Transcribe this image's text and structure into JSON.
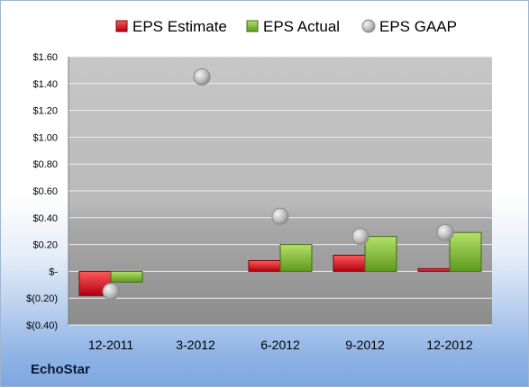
{
  "chart_data": {
    "type": "bar",
    "title": "",
    "xlabel": "",
    "ylabel": "",
    "categories": [
      "12-2011",
      "3-2012",
      "6-2012",
      "9-2012",
      "12-2012"
    ],
    "series": [
      {
        "name": "EPS Estimate",
        "kind": "bar",
        "color": "#e0202a",
        "values": [
          -0.18,
          null,
          0.08,
          0.12,
          0.02
        ]
      },
      {
        "name": "EPS Actual",
        "kind": "bar",
        "color": "#8ec63f",
        "values": [
          -0.08,
          null,
          0.2,
          0.26,
          0.29
        ]
      },
      {
        "name": "EPS GAAP",
        "kind": "marker",
        "color": "#b8b8b8",
        "values": [
          -0.15,
          1.45,
          0.41,
          0.26,
          0.29
        ]
      }
    ],
    "ylim": [
      -0.4,
      1.6
    ],
    "yticks": [
      1.6,
      1.4,
      1.2,
      1.0,
      0.8,
      0.6,
      0.4,
      0.2,
      0.0,
      -0.2,
      -0.4
    ],
    "ytick_labels": [
      "$1.60",
      "$1.40",
      "$1.20",
      "$1.00",
      "$0.80",
      "$0.60",
      "$0.40",
      "$0.20",
      "$-",
      "$(0.20)",
      "$(0.40)"
    ],
    "grid": true,
    "legend": "top"
  },
  "footer": {
    "company": "EchoStar"
  }
}
